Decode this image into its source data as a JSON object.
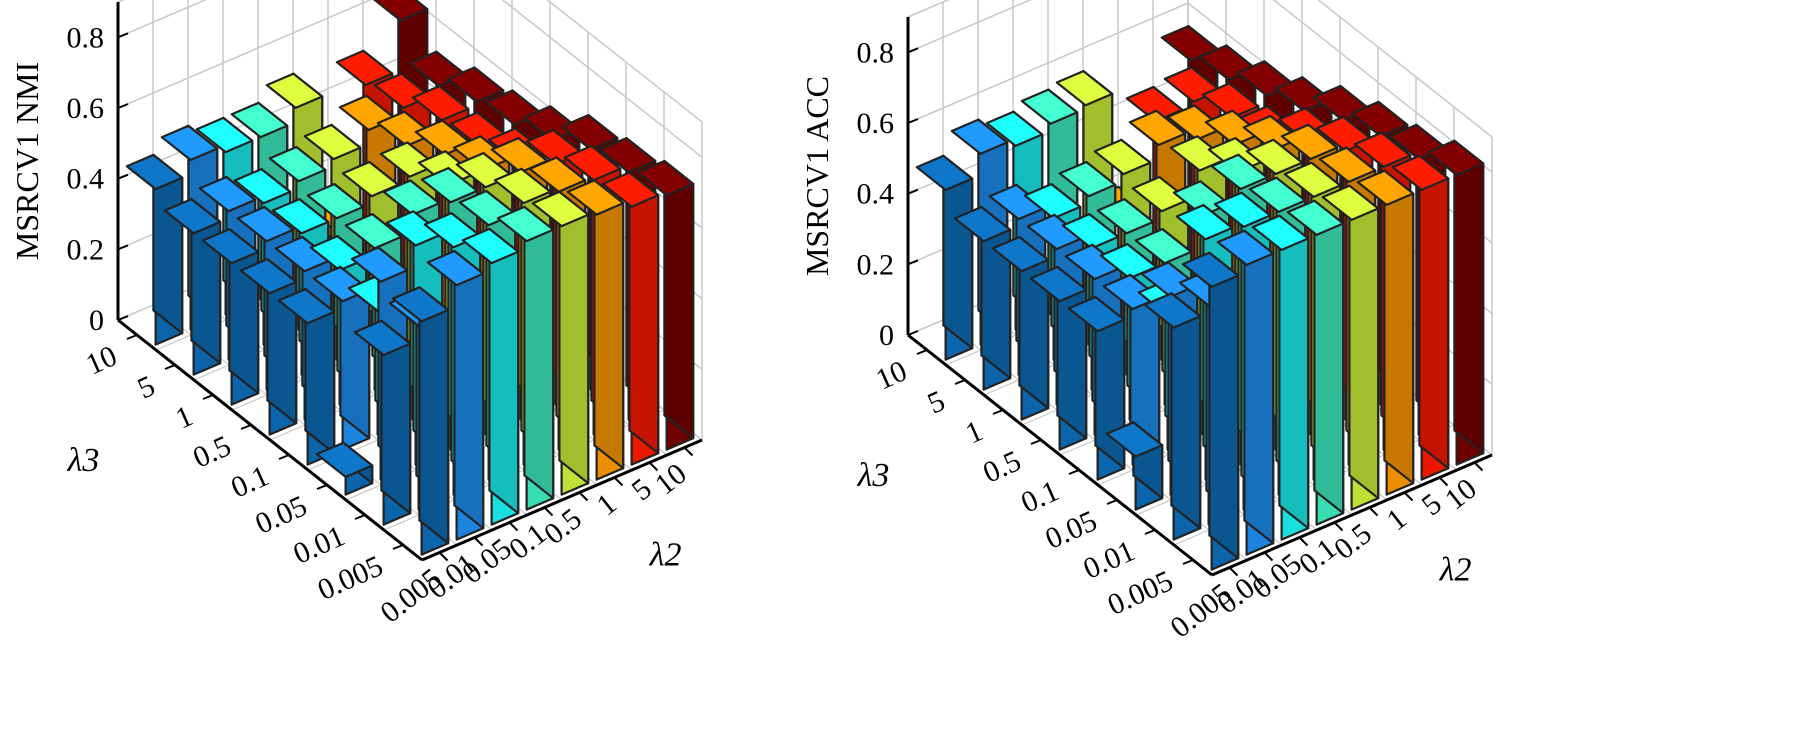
{
  "colors": {
    "series": [
      "#0d6eba",
      "#1e8ff0",
      "#1cf2f2",
      "#3ff0c0",
      "#cef53a",
      "#ff9a00",
      "#ff1a00",
      "#7a0000"
    ],
    "edge": "#222222",
    "grid": "#c8c8c8"
  },
  "chart_data": [
    {
      "type": "bar3d",
      "zlabel": "MSRCV1 NMI",
      "xlabel": "λ3",
      "ylabel": "λ2",
      "x_ticks": [
        "0.005",
        "0.01",
        "0.05",
        "0.1",
        "0.5",
        "1",
        "5",
        "10"
      ],
      "y_ticks": [
        "0.005",
        "0.01",
        "0.05",
        "0.1",
        "0.5",
        "1",
        "5",
        "10"
      ],
      "z_ticks": [
        "0",
        "0.2",
        "0.4",
        "0.6",
        "0.8"
      ],
      "zlim": [
        0,
        0.9
      ],
      "values": [
        [
          0.66,
          0.72,
          0.74,
          0.76,
          0.76,
          0.75,
          0.73,
          0.72
        ],
        [
          0.48,
          0.52,
          0.7,
          0.72,
          0.74,
          0.73,
          0.72,
          0.7
        ],
        [
          0.05,
          0.56,
          0.62,
          0.7,
          0.7,
          0.7,
          0.68,
          0.68
        ],
        [
          0.4,
          0.42,
          0.35,
          0.58,
          0.62,
          0.62,
          0.6,
          0.62
        ],
        [
          0.4,
          0.42,
          0.38,
          0.4,
          0.56,
          0.58,
          0.56,
          0.58
        ],
        [
          0.4,
          0.42,
          0.4,
          0.4,
          0.42,
          0.52,
          0.55,
          0.56
        ],
        [
          0.4,
          0.42,
          0.4,
          0.42,
          0.44,
          0.48,
          0.5,
          0.52
        ],
        [
          0.44,
          0.48,
          0.46,
          0.46,
          0.5,
          0.12,
          0.48,
          0.62
        ]
      ]
    },
    {
      "type": "bar3d",
      "zlabel": "MSRCV1 ACC",
      "xlabel": "λ3",
      "ylabel": "λ2",
      "x_ticks": [
        "0.005",
        "0.01",
        "0.05",
        "0.1",
        "0.5",
        "1",
        "5",
        "10"
      ],
      "y_ticks": [
        "0.005",
        "0.01",
        "0.05",
        "0.1",
        "0.5",
        "1",
        "5",
        "10"
      ],
      "z_ticks": [
        "0",
        "0.2",
        "0.4",
        "0.6",
        "0.8"
      ],
      "zlim": [
        0,
        0.9
      ],
      "values": [
        [
          0.8,
          0.82,
          0.82,
          0.82,
          0.82,
          0.82,
          0.82,
          0.82
        ],
        [
          0.6,
          0.62,
          0.8,
          0.8,
          0.8,
          0.8,
          0.8,
          0.78
        ],
        [
          0.15,
          0.56,
          0.68,
          0.78,
          0.78,
          0.78,
          0.76,
          0.76
        ],
        [
          0.42,
          0.44,
          0.38,
          0.62,
          0.7,
          0.72,
          0.7,
          0.72
        ],
        [
          0.42,
          0.44,
          0.4,
          0.4,
          0.62,
          0.65,
          0.62,
          0.66
        ],
        [
          0.42,
          0.44,
          0.4,
          0.4,
          0.42,
          0.58,
          0.6,
          0.62
        ],
        [
          0.42,
          0.44,
          0.4,
          0.42,
          0.44,
          0.48,
          0.56,
          0.58
        ],
        [
          0.48,
          0.54,
          0.52,
          0.54,
          0.55,
          0.18,
          0.42,
          0.55
        ]
      ]
    }
  ]
}
